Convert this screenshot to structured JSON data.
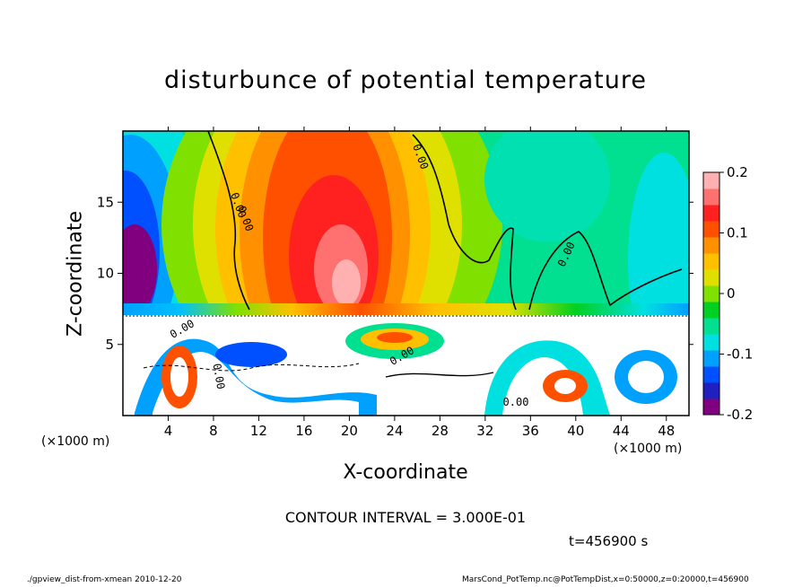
{
  "chart_data": {
    "type": "heatmap",
    "title": "disturbunce of potential temperature",
    "xlabel": "X-coordinate",
    "ylabel": "Z-coordinate",
    "x_unit_label": "(×1000 m)",
    "xlim": [
      0,
      50
    ],
    "ylim": [
      0,
      20
    ],
    "x_ticks": [
      4,
      8,
      12,
      16,
      20,
      24,
      28,
      32,
      36,
      40,
      44,
      48
    ],
    "y_ticks": [
      5,
      10,
      15
    ],
    "colorbar": {
      "range": [
        -0.2,
        0.2
      ],
      "ticks": [
        "0.2",
        "0.1",
        "0",
        "-0.1",
        "-0.2"
      ],
      "tick_values": [
        0.2,
        0.1,
        0,
        -0.1,
        -0.2
      ],
      "colors": [
        "#800080",
        "#2020c0",
        "#0050ff",
        "#00a0ff",
        "#00e0e0",
        "#00e090",
        "#00d020",
        "#80e000",
        "#e0e000",
        "#ffc000",
        "#ff9000",
        "#ff5000",
        "#ff2020",
        "#ff7070",
        "#ffb0b0"
      ]
    },
    "contour_interval_text": "CONTOUR INTERVAL = 3.000E-01",
    "contour_labels": [
      "0.00",
      "0.00",
      "0.00",
      "0.00",
      "0.00",
      "0.00",
      "0.00",
      "0.00"
    ],
    "time_text": "t=456900 s",
    "notes": {
      "upper_field": "positive maximum centered near x=19, z=10; negative near left edge",
      "lower_layer": "turbulent mixed region below z≈7.2"
    }
  },
  "footer": {
    "left": "./gpview_dist-from-xmean  2010-12-20",
    "right": "MarsCond_PotTemp.nc@PotTempDist,x=0:50000,z=0:20000,t=456900"
  }
}
